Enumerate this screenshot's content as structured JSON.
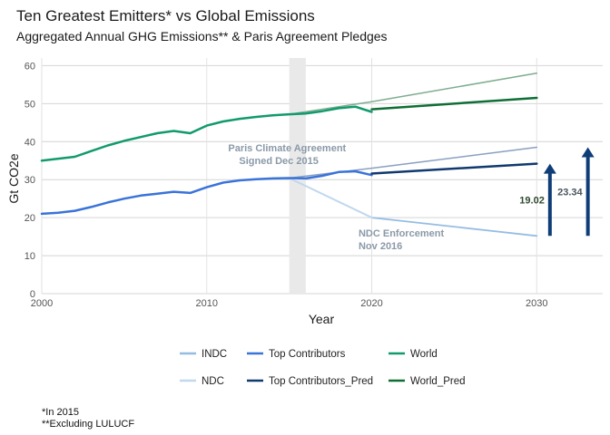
{
  "chart_data": {
    "type": "line",
    "title": "Ten Greatest Emitters* vs Global Emissions",
    "subtitle": "Aggregated Annual GHG Emissions** & Paris Agreement Pledges",
    "xlabel": "Year",
    "ylabel": "Gt CO2e",
    "xlim": [
      2000,
      2034
    ],
    "ylim": [
      0,
      62
    ],
    "x_ticks": [
      2000,
      2010,
      2020,
      2030
    ],
    "y_ticks": [
      0,
      10,
      20,
      30,
      40,
      50,
      60
    ],
    "grid": true,
    "shaded_band": [
      2015,
      2016
    ],
    "series": [
      {
        "name": "World",
        "color": "#119a6c",
        "width": 2.5,
        "points": [
          [
            2000,
            35.0
          ],
          [
            2001,
            35.5
          ],
          [
            2002,
            36.0
          ],
          [
            2003,
            37.5
          ],
          [
            2004,
            39.0
          ],
          [
            2005,
            40.2
          ],
          [
            2006,
            41.2
          ],
          [
            2007,
            42.2
          ],
          [
            2008,
            42.8
          ],
          [
            2009,
            42.2
          ],
          [
            2010,
            44.2
          ],
          [
            2011,
            45.3
          ],
          [
            2012,
            46.0
          ],
          [
            2013,
            46.5
          ],
          [
            2014,
            46.9
          ],
          [
            2015,
            47.2
          ],
          [
            2016,
            47.4
          ],
          [
            2017,
            48.0
          ],
          [
            2018,
            48.8
          ],
          [
            2019,
            49.2
          ],
          [
            2020,
            47.8
          ]
        ]
      },
      {
        "name": "World_Pred",
        "color": "#0e6e35",
        "width": 2.5,
        "points": [
          [
            2020,
            48.5
          ],
          [
            2030,
            51.5
          ]
        ]
      },
      {
        "name": "",
        "color": "#7fad90",
        "width": 1.5,
        "points": [
          [
            2015,
            47.2
          ],
          [
            2020,
            50.5
          ],
          [
            2030,
            58.0
          ]
        ]
      },
      {
        "name": "Top Contributors",
        "color": "#3a73d9",
        "width": 2.5,
        "points": [
          [
            2000,
            21.0
          ],
          [
            2001,
            21.3
          ],
          [
            2002,
            21.8
          ],
          [
            2003,
            22.8
          ],
          [
            2004,
            24.0
          ],
          [
            2005,
            25.0
          ],
          [
            2006,
            25.8
          ],
          [
            2007,
            26.3
          ],
          [
            2008,
            26.8
          ],
          [
            2009,
            26.5
          ],
          [
            2010,
            28.0
          ],
          [
            2011,
            29.2
          ],
          [
            2012,
            29.8
          ],
          [
            2013,
            30.1
          ],
          [
            2014,
            30.3
          ],
          [
            2015,
            30.4
          ],
          [
            2016,
            30.3
          ],
          [
            2017,
            31.0
          ],
          [
            2018,
            32.0
          ],
          [
            2019,
            32.2
          ],
          [
            2020,
            31.2
          ]
        ]
      },
      {
        "name": "Top Contributors_Pred",
        "color": "#10396e",
        "width": 2.5,
        "points": [
          [
            2020,
            31.6
          ],
          [
            2030,
            34.2
          ]
        ]
      },
      {
        "name": "",
        "color": "#8aa0c0",
        "width": 1.5,
        "points": [
          [
            2015,
            30.4
          ],
          [
            2020,
            33.0
          ],
          [
            2030,
            38.5
          ]
        ]
      },
      {
        "name": "INDC",
        "color": "#95bde3",
        "width": 1.8,
        "points": [
          [
            2015,
            30.4
          ],
          [
            2020,
            20.0
          ],
          [
            2030,
            15.2
          ]
        ]
      },
      {
        "name": "NDC",
        "color": "#c2d8ee",
        "width": 1.8,
        "points": [
          [
            2015,
            30.4
          ],
          [
            2020,
            20.0
          ]
        ]
      }
    ],
    "annotations": [
      {
        "lines": [
          "Paris Climate Agreement",
          "Signed Dec 2015"
        ]
      },
      {
        "lines": [
          "NDC Enforcement",
          "Nov 2016"
        ]
      }
    ],
    "gap_arrows": [
      {
        "label": "19.02",
        "x": 2030.8,
        "from": 15.2,
        "to": 34.2,
        "label_color": "#2f4a30"
      },
      {
        "label": "23.34",
        "x": 2033.1,
        "from": 15.2,
        "to": 38.5,
        "label_color": "#4a5560"
      }
    ],
    "legend": {
      "placement": "bottom",
      "items": [
        {
          "label": "INDC",
          "color": "#95bde3"
        },
        {
          "label": "Top Contributors",
          "color": "#3a73d9"
        },
        {
          "label": "World",
          "color": "#119a6c"
        },
        {
          "label": "NDC",
          "color": "#c2d8ee"
        },
        {
          "label": "Top Contributors_Pred",
          "color": "#10396e"
        },
        {
          "label": "World_Pred",
          "color": "#0e6e35"
        }
      ]
    },
    "footnotes": [
      "*In 2015",
      "**Excluding LULUCF"
    ]
  }
}
